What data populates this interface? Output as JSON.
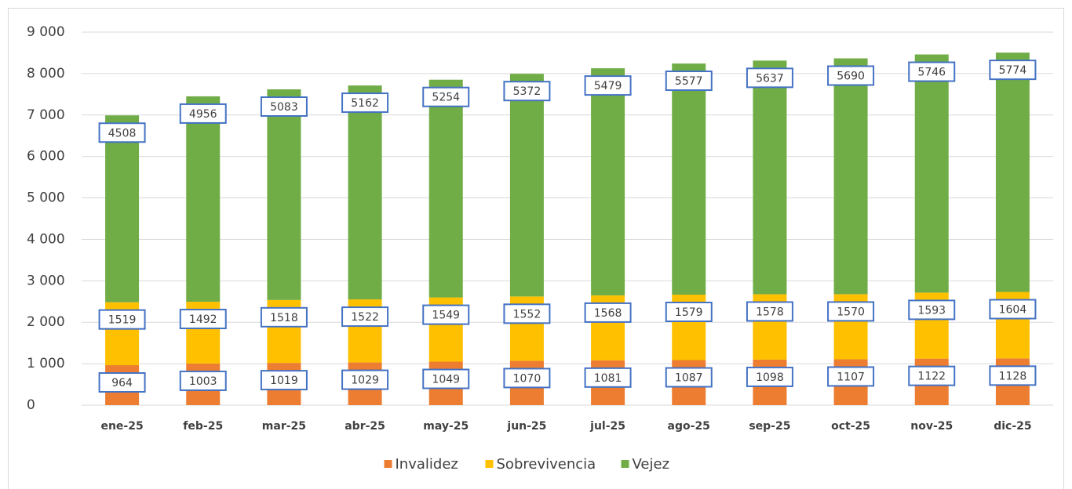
{
  "chart_data": {
    "type": "stacked_bar",
    "categories": [
      "ene-25",
      "feb-25",
      "mar-25",
      "abr-25",
      "may-25",
      "jun-25",
      "jul-25",
      "ago-25",
      "sep-25",
      "oct-25",
      "nov-25",
      "dic-25"
    ],
    "series": [
      {
        "name": "Invalidez",
        "color": "#ed7d31",
        "values": [
          964,
          1003,
          1019,
          1029,
          1049,
          1070,
          1081,
          1087,
          1098,
          1107,
          1122,
          1128
        ]
      },
      {
        "name": "Sobrevivencia",
        "color": "#ffc000",
        "values": [
          1519,
          1492,
          1518,
          1522,
          1549,
          1552,
          1568,
          1579,
          1578,
          1570,
          1593,
          1604
        ]
      },
      {
        "name": "Vejez",
        "color": "#70ad47",
        "values": [
          4508,
          4956,
          5083,
          5162,
          5254,
          5372,
          5479,
          5577,
          5637,
          5690,
          5746,
          5774
        ]
      }
    ],
    "ylim": [
      0,
      9000
    ],
    "yticks": [
      0,
      {
        "value": 1000,
        "label": "1 000"
      },
      {
        "value": 2000,
        "label": "2 000"
      },
      {
        "value": 3000,
        "label": "3 000"
      },
      {
        "value": 4000,
        "label": "4 000"
      },
      {
        "value": 5000,
        "label": "5 000"
      },
      {
        "value": 6000,
        "label": "6 000"
      },
      {
        "value": 7000,
        "label": "7 000"
      },
      {
        "value": 8000,
        "label": "8 000"
      },
      {
        "value": 9000,
        "label": "9 000"
      }
    ],
    "grid": true,
    "legend": "bottom"
  }
}
